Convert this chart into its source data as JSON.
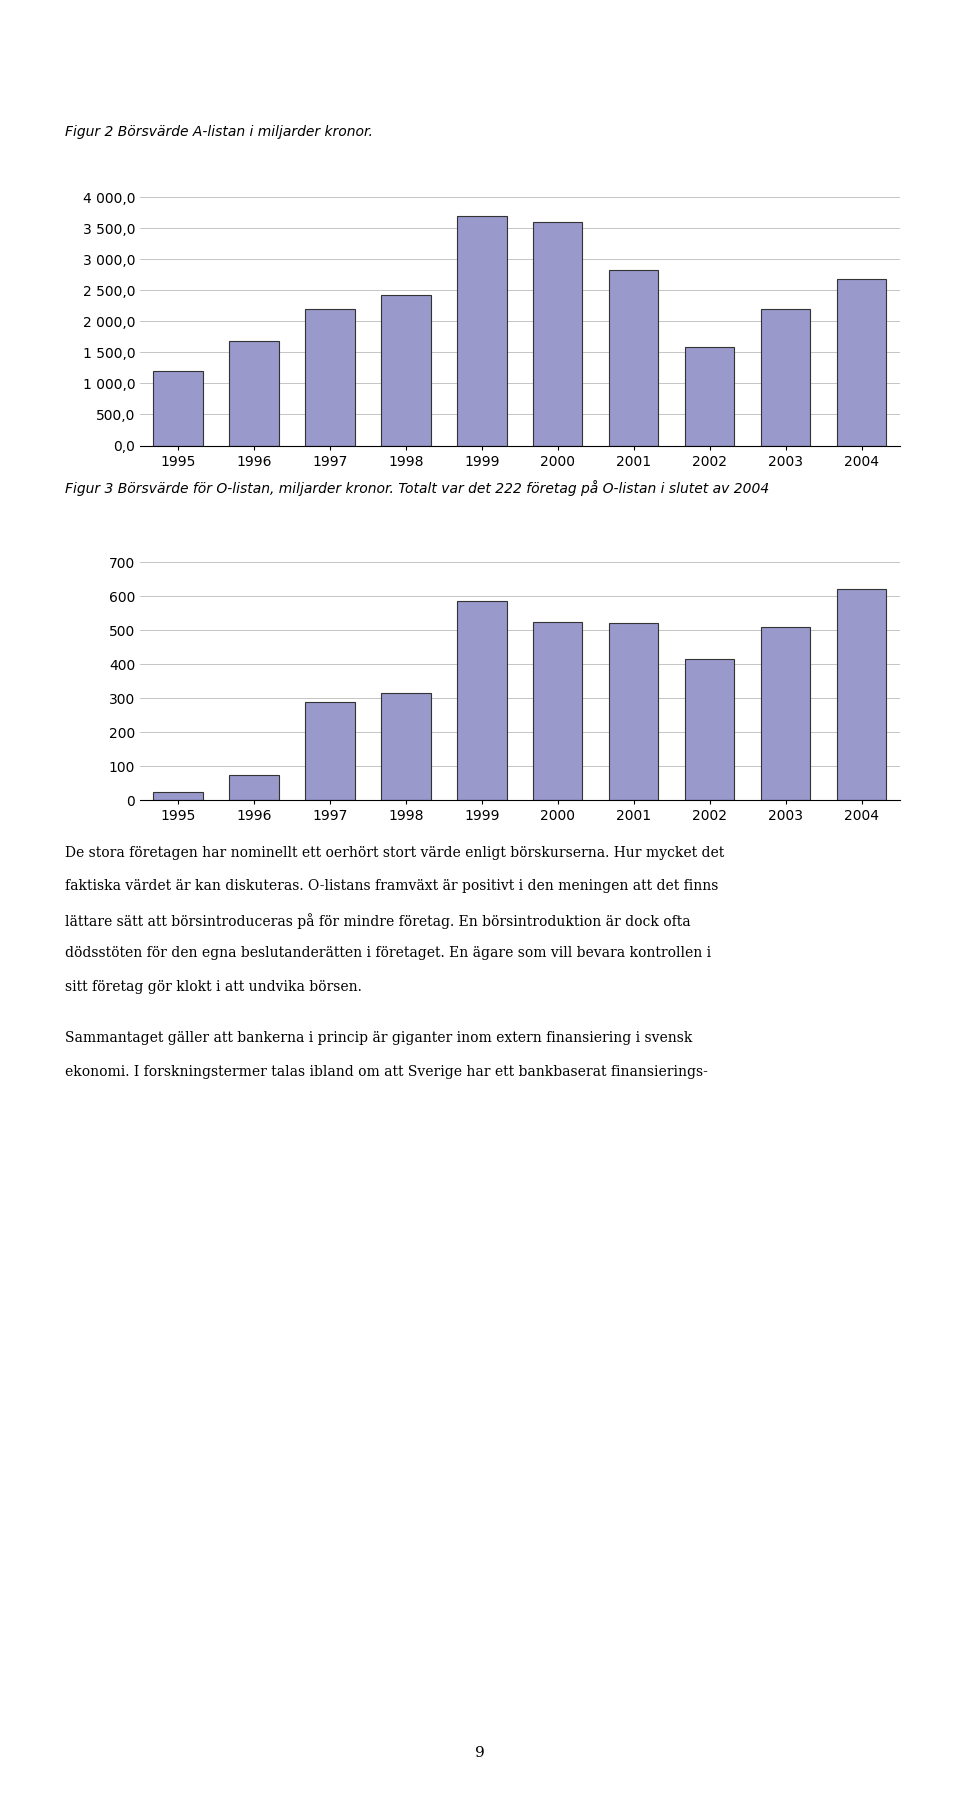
{
  "fig1_caption": "Figur 2 Börsvärde A-listan i miljarder kronor.",
  "fig2_caption": "Figur 3 Börsvärde för O-listan, miljarder kronor. Totalt var det 222 företag på O-listan i slutet av 2004",
  "years": [
    1995,
    1996,
    1997,
    1998,
    1999,
    2000,
    2001,
    2002,
    2003,
    2004
  ],
  "fig1_values": [
    1200,
    1680,
    2200,
    2430,
    3700,
    3600,
    2820,
    1590,
    2200,
    2680
  ],
  "fig2_values": [
    25,
    75,
    290,
    315,
    585,
    525,
    522,
    415,
    510,
    620
  ],
  "bar_color": "#9999CC",
  "bar_edgecolor": "#333333",
  "fig1_yticks": [
    0,
    500,
    1000,
    1500,
    2000,
    2500,
    3000,
    3500,
    4000
  ],
  "fig1_ytick_labels": [
    "0,0",
    "500,0",
    "1 000,0",
    "1 500,0",
    "2 000,0",
    "2 500,0",
    "3 000,0",
    "3 500,0",
    "4 000,0"
  ],
  "fig2_yticks": [
    0,
    100,
    200,
    300,
    400,
    500,
    600,
    700
  ],
  "fig2_ytick_labels": [
    "0",
    "100",
    "200",
    "300",
    "400",
    "500",
    "600",
    "700"
  ],
  "body_para1": "De stora företagen har nominellt ett oerhört stort värde enligt börskurserna. Hur mycket det faktiska värdet är kan diskuteras. O-listans framväxt är positivt i den meningen att det finns lättare sätt att börsintroduceras på för mindre företag. En börsintroduktion är dock ofta dödsstöten för den egna beslutanderätten i företaget. En ägare som vill bevara kontrollen i sitt företag gör klokt i att undvika börsen.",
  "body_para2": "Sammantaget gäller att bankerna i princip är giganter inom extern finansiering i svensk ekonomi. I forskningstermer talas ibland om att Sverige har ett bankbaserat finansierings-",
  "page_number": "9"
}
